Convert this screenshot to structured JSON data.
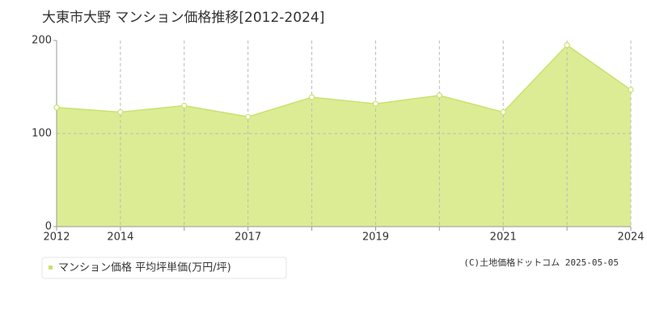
{
  "chart_data": {
    "type": "area",
    "title": "大東市大野 マンション価格推移[2012-2024]",
    "categories": [
      "2012",
      "2014",
      null,
      "2017",
      null,
      "2019",
      null,
      "2021",
      null,
      "2024"
    ],
    "series": [
      {
        "name": "マンション価格 平均坪単価(万円/坪)",
        "color": "#c8e26e",
        "values": [
          128,
          123,
          130,
          118,
          139,
          132,
          141,
          123,
          195,
          147
        ]
      }
    ],
    "ylim": [
      0,
      200
    ],
    "yticks": [
      0,
      100,
      200
    ],
    "grid": true,
    "credit": "(C)土地価格ドットコム 2025-05-05"
  }
}
